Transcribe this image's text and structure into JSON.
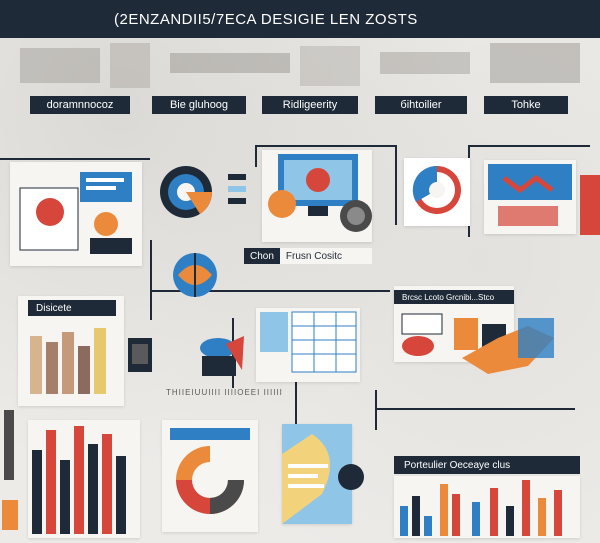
{
  "header": {
    "title": "(2ENZANDII5/7ECA DESIGIE LEN ZOSTS"
  },
  "tabs": [
    {
      "label": "doramnnocoz"
    },
    {
      "label": "Bie gluhoog"
    },
    {
      "label": "Ridligeerity"
    },
    {
      "label": "бihtoilier"
    },
    {
      "label": "Tohke"
    }
  ],
  "panels": {
    "frush_label": "Frusn Cositc",
    "frush_prefix": "Chon",
    "discete_label": "Disicete",
    "prediction_label": "Brcsc Lcoto Grcnibi...Stco",
    "thumbnail_caption": "THIIEIUUIIII IIIIOEEI IIIIII",
    "bottom_right_label": "Porteulier Oeceaye clus"
  },
  "colors": {
    "dark_navy": "#1f2a38",
    "accent_red": "#d6463a",
    "accent_orange": "#ec8a3c",
    "accent_blue": "#2e7fc4",
    "light_blue": "#8fc6e8",
    "cream": "#f6f5f2"
  },
  "icons": [
    "machinery-background-icon",
    "donut-chart-icon",
    "pie-chart-icon",
    "bar-chart-icon",
    "monitor-icon",
    "folder-icon",
    "document-icon",
    "hand-icon",
    "globe-icon"
  ]
}
